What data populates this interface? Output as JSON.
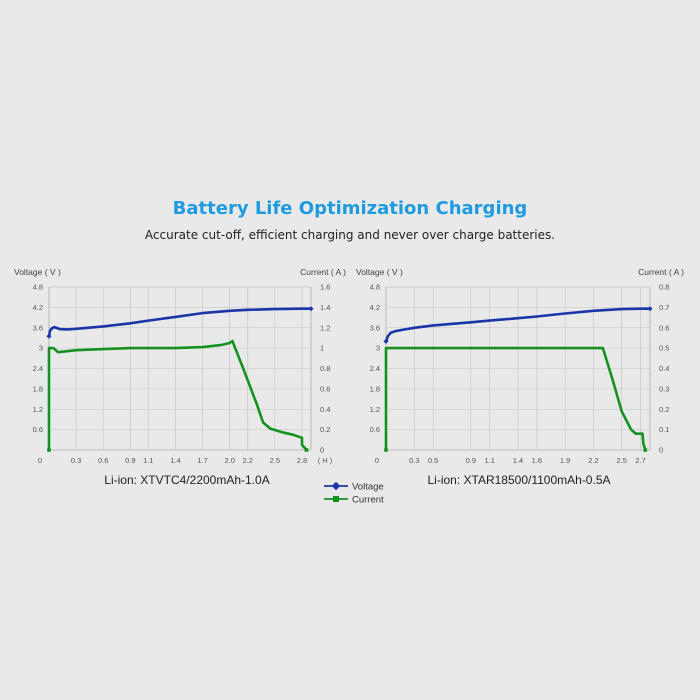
{
  "header": {
    "title": "Battery Life Optimization Charging",
    "subtitle": "Accurate cut-off, efficient charging and never over charge batteries."
  },
  "legend": {
    "items": [
      {
        "label": "Voltage",
        "color": "#1a35a8",
        "marker": "diamond"
      },
      {
        "label": "Current",
        "color": "#15911f",
        "marker": "square"
      }
    ]
  },
  "chart_data": [
    {
      "type": "line",
      "caption": "Li-ion: XTVTC4/2200mAh-1.0A",
      "y_left_label": "Voltage ( V )",
      "y_right_label": "Current ( A )",
      "x_unit": "( H )",
      "x_origin": "0",
      "xlim": [
        0,
        2.9
      ],
      "y_left_lim": [
        0,
        4.8
      ],
      "y_right_lim": [
        0,
        1.6
      ],
      "x_ticks": [
        "0.3",
        "0.6",
        "0.9",
        "1.1",
        "1.4",
        "1.7",
        "2.0",
        "2.2",
        "2.5",
        "2.8"
      ],
      "y_left_ticks": [
        "4.8",
        "4.2",
        "3.6",
        "3",
        "2.4",
        "1.8",
        "1.2",
        "0.6"
      ],
      "y_right_ticks": [
        "1.6",
        "1.4",
        "1.2",
        "1",
        "0.8",
        "0.6",
        "0.4",
        "0.2",
        "0"
      ],
      "grid": true,
      "series": [
        {
          "name": "Voltage",
          "axis": "left",
          "color": "#1a35a8",
          "points": [
            [
              0.0,
              3.35
            ],
            [
              0.01,
              3.5
            ],
            [
              0.03,
              3.58
            ],
            [
              0.06,
              3.62
            ],
            [
              0.12,
              3.56
            ],
            [
              0.2,
              3.55
            ],
            [
              0.3,
              3.57
            ],
            [
              0.6,
              3.64
            ],
            [
              0.9,
              3.73
            ],
            [
              1.1,
              3.81
            ],
            [
              1.4,
              3.92
            ],
            [
              1.7,
              4.03
            ],
            [
              2.0,
              4.1
            ],
            [
              2.2,
              4.13
            ],
            [
              2.5,
              4.15
            ],
            [
              2.8,
              4.16
            ],
            [
              2.9,
              4.16
            ]
          ]
        },
        {
          "name": "Current",
          "axis": "right",
          "color": "#15911f",
          "points": [
            [
              0.0,
              0.0
            ],
            [
              0.0,
              1.0
            ],
            [
              0.05,
              1.0
            ],
            [
              0.1,
              0.96
            ],
            [
              0.2,
              0.97
            ],
            [
              0.3,
              0.98
            ],
            [
              0.6,
              0.99
            ],
            [
              0.9,
              1.0
            ],
            [
              1.1,
              1.0
            ],
            [
              1.4,
              1.0
            ],
            [
              1.7,
              1.01
            ],
            [
              1.9,
              1.03
            ],
            [
              2.0,
              1.05
            ],
            [
              2.03,
              1.07
            ],
            [
              2.15,
              0.8
            ],
            [
              2.3,
              0.45
            ],
            [
              2.37,
              0.27
            ],
            [
              2.45,
              0.21
            ],
            [
              2.6,
              0.17
            ],
            [
              2.7,
              0.15
            ],
            [
              2.8,
              0.12
            ],
            [
              2.8,
              0.05
            ],
            [
              2.85,
              0.0
            ]
          ]
        }
      ]
    },
    {
      "type": "line",
      "caption": "Li-ion: XTAR18500/1100mAh-0.5A",
      "y_left_label": "Voltage ( V )",
      "y_right_label": "Current ( A )",
      "x_unit": "",
      "x_origin": "0",
      "xlim": [
        0,
        2.8
      ],
      "y_left_lim": [
        0,
        4.8
      ],
      "y_right_lim": [
        0,
        0.8
      ],
      "x_ticks": [
        "0.3",
        "0.5",
        "0.9",
        "1.1",
        "1.4",
        "1.6",
        "1.9",
        "2.2",
        "2.5",
        "2.7"
      ],
      "y_left_ticks": [
        "4.8",
        "4.2",
        "3.6",
        "3",
        "2.4",
        "1.8",
        "1.2",
        "0.6"
      ],
      "y_right_ticks": [
        "0.8",
        "0.7",
        "0.6",
        "0.5",
        "0.4",
        "0.3",
        "0.2",
        "0.1",
        "0"
      ],
      "grid": true,
      "series": [
        {
          "name": "Voltage",
          "axis": "left",
          "color": "#1a35a8",
          "points": [
            [
              0.0,
              3.2
            ],
            [
              0.02,
              3.35
            ],
            [
              0.05,
              3.45
            ],
            [
              0.1,
              3.5
            ],
            [
              0.2,
              3.55
            ],
            [
              0.3,
              3.6
            ],
            [
              0.5,
              3.67
            ],
            [
              0.9,
              3.76
            ],
            [
              1.1,
              3.81
            ],
            [
              1.4,
              3.88
            ],
            [
              1.6,
              3.93
            ],
            [
              1.9,
              4.02
            ],
            [
              2.2,
              4.1
            ],
            [
              2.5,
              4.15
            ],
            [
              2.7,
              4.16
            ],
            [
              2.8,
              4.16
            ]
          ]
        },
        {
          "name": "Current",
          "axis": "right",
          "color": "#15911f",
          "points": [
            [
              0.0,
              0.0
            ],
            [
              0.0,
              0.5
            ],
            [
              0.3,
              0.5
            ],
            [
              0.9,
              0.5
            ],
            [
              1.4,
              0.5
            ],
            [
              1.9,
              0.5
            ],
            [
              2.25,
              0.5
            ],
            [
              2.3,
              0.5
            ],
            [
              2.4,
              0.35
            ],
            [
              2.5,
              0.19
            ],
            [
              2.6,
              0.1
            ],
            [
              2.65,
              0.08
            ],
            [
              2.72,
              0.08
            ],
            [
              2.73,
              0.03
            ],
            [
              2.75,
              0.0
            ]
          ]
        }
      ]
    }
  ]
}
